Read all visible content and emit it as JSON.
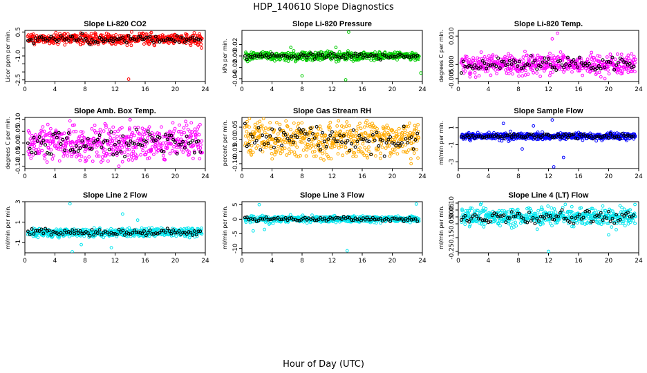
{
  "figure": {
    "title": "HDP_140610  Slope Diagnostics",
    "xlabel": "Hour of Day (UTC)"
  },
  "chart_data": [
    {
      "type": "scatter",
      "title": "Slope Li-820 CO2",
      "ylabel": "Licor ppm per min.",
      "xlim": [
        0,
        24
      ],
      "ylim": [
        -2.6,
        0.6
      ],
      "yticks": [
        0.5,
        -0.5,
        -1.0,
        -1.5,
        -2.0,
        -2.5
      ],
      "ytick_labels": [
        "0.5",
        "",
        "-1.0",
        "",
        "",
        "-2.5"
      ],
      "xticks": [
        0,
        4,
        8,
        12,
        16,
        20,
        24
      ],
      "color": "#ff0000",
      "center": 0.05,
      "spread": 0.18,
      "outliers": [
        [
          13.8,
          -2.45
        ],
        [
          14.2,
          0.5
        ],
        [
          23.5,
          -0.5
        ]
      ],
      "seed": 1
    },
    {
      "type": "scatter",
      "title": "Slope Li-820 Pressure",
      "ylabel": "kPa per min.",
      "xlim": [
        0,
        24
      ],
      "ylim": [
        -0.045,
        0.045
      ],
      "yticks": [
        0.02,
        0.0,
        -0.02,
        -0.04
      ],
      "ytick_labels": [
        "0.02",
        "0.00",
        "-0.02",
        "-0.04"
      ],
      "xticks": [
        0,
        4,
        8,
        12,
        16,
        20,
        24
      ],
      "color": "#00cc00",
      "center": 0.0,
      "spread": 0.004,
      "outliers": [
        [
          14.2,
          0.042
        ],
        [
          8.0,
          -0.035
        ],
        [
          13.8,
          -0.042
        ],
        [
          12.5,
          0.015
        ],
        [
          23.8,
          -0.03
        ],
        [
          6.5,
          0.015
        ]
      ],
      "seed": 2
    },
    {
      "type": "scatter",
      "title": "Slope Li-820 Temp.",
      "ylabel": "degrees C per min.",
      "xlim": [
        0,
        24
      ],
      "ylim": [
        -0.006,
        0.012
      ],
      "yticks": [
        0.01,
        0.0,
        -0.005
      ],
      "ytick_labels": [
        "0.010",
        "0.000",
        "-0.005"
      ],
      "xticks": [
        0,
        4,
        8,
        12,
        16,
        20,
        24
      ],
      "color": "#ff00ff",
      "center": 0.0,
      "spread": 0.0018,
      "outliers": [
        [
          12.5,
          0.009
        ],
        [
          13.2,
          0.011
        ],
        [
          19.5,
          -0.005
        ]
      ],
      "seed": 3
    },
    {
      "type": "scatter",
      "title": "Slope Amb. Box Temp.",
      "ylabel": "degrees C per min.",
      "xlim": [
        0,
        24
      ],
      "ylim": [
        -0.11,
        0.11
      ],
      "yticks": [
        0.1,
        0.05,
        0.0,
        -0.05,
        -0.1
      ],
      "ytick_labels": [
        "0.10",
        "0.05",
        "0.00",
        "-0.05",
        "-0.10"
      ],
      "xticks": [
        0,
        4,
        8,
        12,
        16,
        20,
        24
      ],
      "color": "#ff00ff",
      "center": 0.0,
      "spread": 0.04,
      "outliers": [
        [
          6.0,
          0.095
        ],
        [
          14.0,
          0.1
        ],
        [
          12.5,
          -0.1
        ]
      ],
      "seed": 4
    },
    {
      "type": "scatter",
      "title": "Slope Gas Stream RH",
      "ylabel": "percent per min.",
      "xlim": [
        0,
        24
      ],
      "ylim": [
        -0.12,
        0.09
      ],
      "yticks": [
        0.05,
        0.0,
        -0.05,
        -0.1
      ],
      "ytick_labels": [
        "0.05",
        "0.00",
        "-0.05",
        "-0.10"
      ],
      "xticks": [
        0,
        4,
        8,
        12,
        16,
        20,
        24
      ],
      "color": "#ffaa00",
      "center": 0.0,
      "spread": 0.04,
      "outliers": [
        [
          1.0,
          0.085
        ],
        [
          22.5,
          -0.1
        ]
      ],
      "seed": 5
    },
    {
      "type": "scatter",
      "title": "Slope Sample Flow",
      "ylabel": "ml/min per min.",
      "xlim": [
        0,
        24
      ],
      "ylim": [
        -3.8,
        2.2
      ],
      "yticks": [
        1,
        -1,
        -3
      ],
      "ytick_labels": [
        "1",
        "-1",
        "-3"
      ],
      "xticks": [
        0,
        4,
        8,
        12,
        16,
        20,
        24
      ],
      "color": "#0000ff",
      "center": 0.0,
      "spread": 0.22,
      "outliers": [
        [
          12.5,
          1.9
        ],
        [
          12.7,
          -3.6
        ],
        [
          6.0,
          1.5
        ],
        [
          14.0,
          -2.5
        ],
        [
          10.0,
          1.2
        ],
        [
          8.5,
          -1.5
        ]
      ],
      "seed": 6
    },
    {
      "type": "scatter",
      "title": "Slope Line 2 Flow",
      "ylabel": "ml/min per min.",
      "xlim": [
        0,
        24
      ],
      "ylim": [
        -2.0,
        3.0
      ],
      "yticks": [
        3,
        1,
        -1
      ],
      "ytick_labels": [
        "3",
        "1",
        "-1"
      ],
      "xticks": [
        0,
        4,
        8,
        12,
        16,
        20,
        24
      ],
      "color": "#00e5ee",
      "center": 0.0,
      "spread": 0.22,
      "outliers": [
        [
          6.0,
          2.8
        ],
        [
          6.3,
          -1.9
        ],
        [
          13.0,
          1.8
        ],
        [
          15.0,
          1.2
        ],
        [
          7.5,
          -1.2
        ],
        [
          11.5,
          -1.5
        ]
      ],
      "seed": 7
    },
    {
      "type": "scatter",
      "title": "Slope Line 3 Flow",
      "ylabel": "ml/min per min.",
      "xlim": [
        0,
        24
      ],
      "ylim": [
        -11.5,
        6.0
      ],
      "yticks": [
        5,
        0,
        -5,
        -10
      ],
      "ytick_labels": [
        "5",
        "0",
        "-5",
        "-10"
      ],
      "xticks": [
        0,
        4,
        8,
        12,
        16,
        20,
        24
      ],
      "color": "#00e5ee",
      "center": 0.0,
      "spread": 0.6,
      "outliers": [
        [
          14.0,
          -10.8
        ],
        [
          2.3,
          5.0
        ],
        [
          23.2,
          5.2
        ],
        [
          1.5,
          -4.0
        ],
        [
          3.0,
          -3.5
        ]
      ],
      "seed": 8
    },
    {
      "type": "scatter",
      "title": "Slope Line 4 (LT) Flow",
      "ylabel": "ml/min per min.",
      "xlim": [
        0,
        24
      ],
      "ylim": [
        -0.26,
        0.11
      ],
      "yticks": [
        0.1,
        0.05,
        0.0,
        -0.05,
        -0.15,
        -0.25
      ],
      "ytick_labels": [
        "0.10",
        "0.05",
        "0.00",
        "-0.05",
        "-0.15",
        "-0.25"
      ],
      "xticks": [
        0,
        4,
        8,
        12,
        16,
        20,
        24
      ],
      "color": "#00e5ee",
      "center": 0.0,
      "spread": 0.035,
      "outliers": [
        [
          12.0,
          -0.25
        ],
        [
          20.0,
          -0.13
        ],
        [
          23.5,
          0.09
        ]
      ],
      "seed": 9
    }
  ]
}
